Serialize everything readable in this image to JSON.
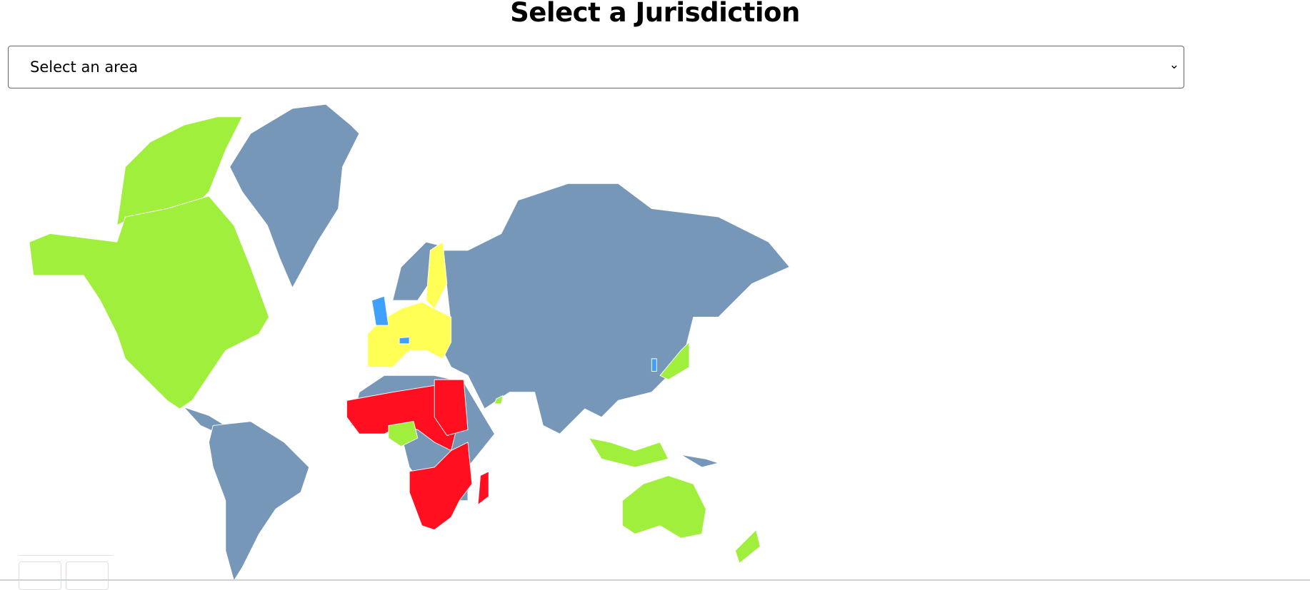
{
  "header": {
    "title": "Select a Jurisdiction"
  },
  "area_select": {
    "selected": "Select an area",
    "chevron": "⌄"
  },
  "map": {
    "colors": {
      "default": "#7797b9",
      "green": "#a0ef3c",
      "yellow": "#ffff55",
      "red": "#ff0f1f",
      "blue": "#3fa0ff",
      "border": "#ffffff"
    }
  }
}
